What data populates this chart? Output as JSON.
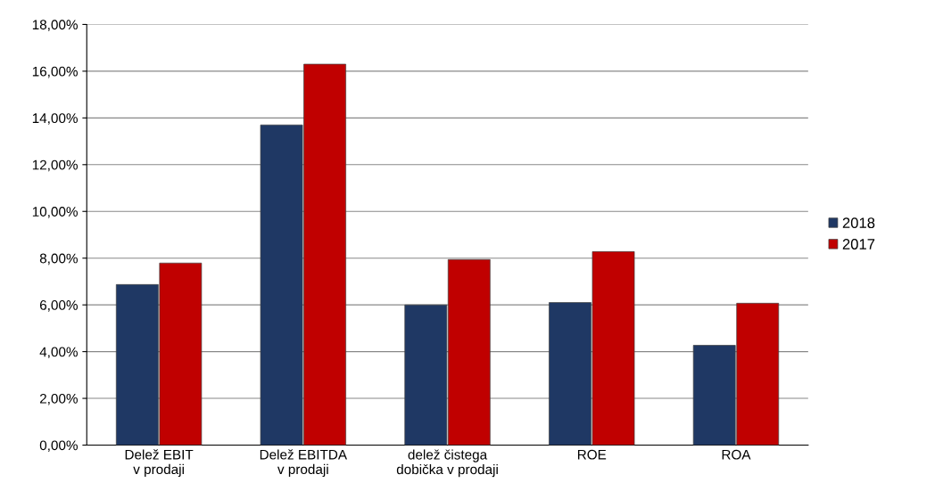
{
  "chart_data": {
    "type": "bar",
    "categories": [
      "Delež EBIT v prodaji",
      "Delež EBITDA v prodaji",
      "delež čistega dobička v prodaji",
      "ROE",
      "ROA"
    ],
    "series": [
      {
        "name": "2018",
        "color": "#1f3864",
        "values": [
          6.87,
          13.7,
          6.0,
          6.1,
          4.27
        ]
      },
      {
        "name": "2017",
        "color": "#c00000",
        "values": [
          7.79,
          16.3,
          7.94,
          8.28,
          6.07
        ]
      }
    ],
    "ylim": [
      0,
      18
    ],
    "yticks": [
      {
        "value": 0,
        "label": "0,00%"
      },
      {
        "value": 2,
        "label": "2,00%"
      },
      {
        "value": 4,
        "label": "4,00%"
      },
      {
        "value": 6,
        "label": "6,00%"
      },
      {
        "value": 8,
        "label": "8,00%"
      },
      {
        "value": 10,
        "label": "10,00%"
      },
      {
        "value": 12,
        "label": "12,00%"
      },
      {
        "value": 14,
        "label": "14,00%"
      },
      {
        "value": 16,
        "label": "16,00%"
      },
      {
        "value": 18,
        "label": "18,00%"
      }
    ],
    "grid": "y",
    "legend": "right"
  }
}
